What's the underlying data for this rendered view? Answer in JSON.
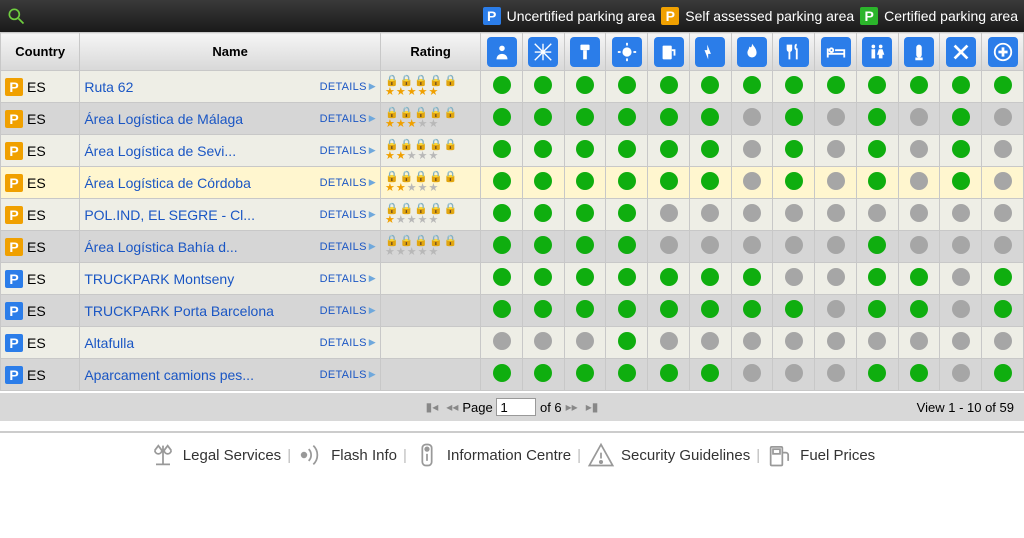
{
  "legend": {
    "uncertified": "Uncertified parking area",
    "self": "Self assessed parking area",
    "certified": "Certified parking area"
  },
  "colors": {
    "badge_blue": "#2b7de9",
    "badge_orange": "#f0a000",
    "badge_green": "#2bb52b",
    "dot_on": "#0fae0f",
    "dot_off": "#a6a6a6",
    "link": "#1a56c4"
  },
  "columns": {
    "country": "Country",
    "name": "Name",
    "rating": "Rating",
    "services": [
      "guard",
      "fence",
      "cctv",
      "light",
      "fuel",
      "power",
      "fire",
      "food",
      "bed",
      "wc",
      "shower",
      "repair",
      "medical"
    ]
  },
  "details_label": "DETAILS",
  "rows": [
    {
      "badge": "orange",
      "cc": "ES",
      "name": "Ruta 62",
      "locks": 5,
      "stars": 5,
      "svc": [
        1,
        1,
        1,
        1,
        1,
        1,
        1,
        1,
        1,
        1,
        1,
        1,
        1
      ],
      "hi": false,
      "has_rating": true
    },
    {
      "badge": "orange",
      "cc": "ES",
      "name": "Área Logística de Málaga",
      "locks": 3,
      "stars": 3,
      "svc": [
        1,
        1,
        1,
        1,
        1,
        1,
        0,
        1,
        0,
        1,
        0,
        1,
        0
      ],
      "hi": false,
      "has_rating": true
    },
    {
      "badge": "orange",
      "cc": "ES",
      "name": "Área Logística de Sevi...",
      "locks": 3,
      "stars": 2,
      "svc": [
        1,
        1,
        1,
        1,
        1,
        1,
        0,
        1,
        0,
        1,
        0,
        1,
        0
      ],
      "hi": false,
      "has_rating": true
    },
    {
      "badge": "orange",
      "cc": "ES",
      "name": "Área Logística de Córdoba",
      "locks": 3,
      "stars": 2,
      "svc": [
        1,
        1,
        1,
        1,
        1,
        1,
        0,
        1,
        0,
        1,
        0,
        1,
        0
      ],
      "hi": true,
      "has_rating": true
    },
    {
      "badge": "orange",
      "cc": "ES",
      "name": "POL.IND, EL SEGRE - Cl...",
      "locks": 1,
      "stars": 1,
      "svc": [
        1,
        1,
        1,
        1,
        0,
        0,
        0,
        0,
        0,
        0,
        0,
        0,
        0
      ],
      "hi": false,
      "has_rating": true
    },
    {
      "badge": "orange",
      "cc": "ES",
      "name": "Área Logística Bahía d...",
      "locks": 1,
      "stars": 0,
      "svc": [
        1,
        1,
        1,
        1,
        0,
        0,
        0,
        0,
        0,
        1,
        0,
        0,
        0
      ],
      "hi": false,
      "has_rating": true
    },
    {
      "badge": "blue",
      "cc": "ES",
      "name": "TRUCKPARK Montseny",
      "locks": 0,
      "stars": 0,
      "svc": [
        1,
        1,
        1,
        1,
        1,
        1,
        1,
        0,
        0,
        1,
        1,
        0,
        1
      ],
      "hi": false,
      "has_rating": false
    },
    {
      "badge": "blue",
      "cc": "ES",
      "name": "TRUCKPARK Porta Barcelona",
      "locks": 0,
      "stars": 0,
      "svc": [
        1,
        1,
        1,
        1,
        1,
        1,
        1,
        1,
        0,
        1,
        1,
        0,
        1
      ],
      "hi": false,
      "has_rating": false
    },
    {
      "badge": "blue",
      "cc": "ES",
      "name": "Altafulla",
      "locks": 0,
      "stars": 0,
      "svc": [
        0,
        0,
        0,
        1,
        0,
        0,
        0,
        0,
        0,
        0,
        0,
        0,
        0
      ],
      "hi": false,
      "has_rating": false
    },
    {
      "badge": "blue",
      "cc": "ES",
      "name": "Aparcament camions pes...",
      "locks": 0,
      "stars": 0,
      "svc": [
        1,
        1,
        1,
        1,
        1,
        1,
        0,
        0,
        0,
        1,
        1,
        0,
        1
      ],
      "hi": false,
      "has_rating": false
    }
  ],
  "pager": {
    "page_label_pre": "Page",
    "page": "1",
    "page_label_post": "of 6",
    "view": "View 1 - 10 of 59"
  },
  "footer": {
    "legal": "Legal Services",
    "flash": "Flash Info",
    "info": "Information Centre",
    "security": "Security Guidelines",
    "fuel": "Fuel Prices"
  }
}
